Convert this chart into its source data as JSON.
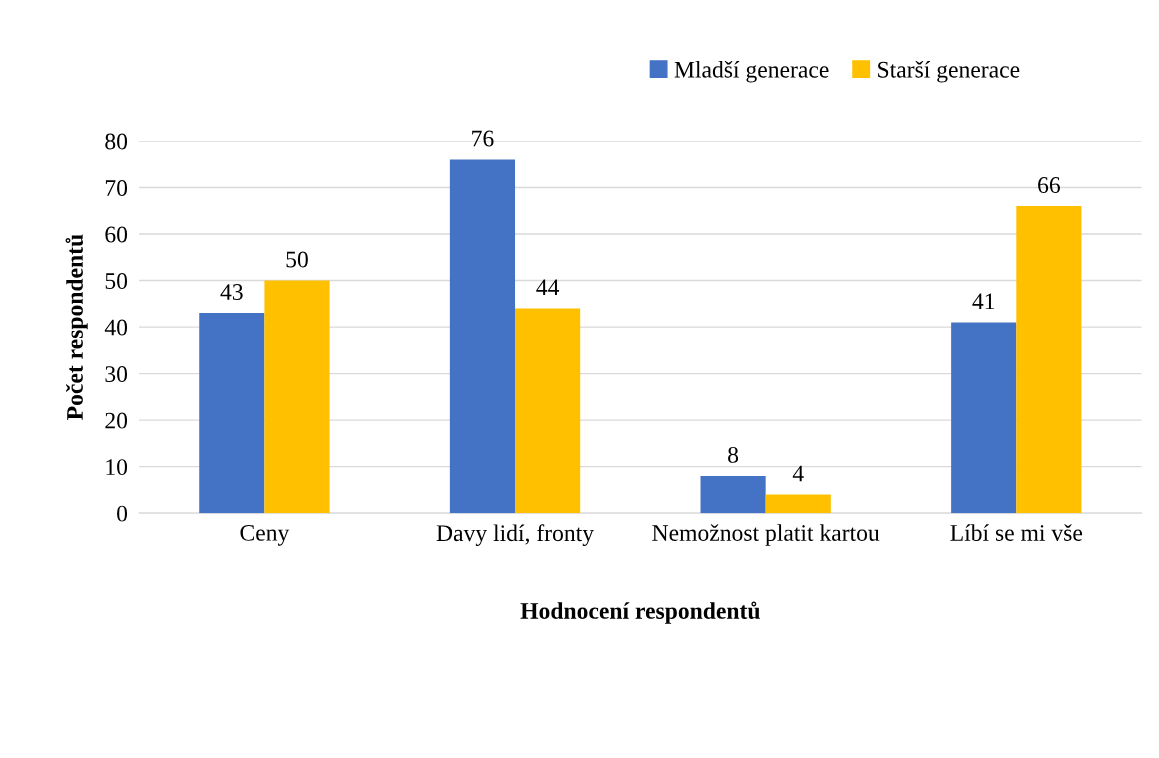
{
  "chart_data": {
    "type": "bar",
    "categories": [
      "Ceny",
      "Davy lidí, fronty",
      "Nemožnost platit kartou",
      "Líbí se mi vše"
    ],
    "series": [
      {
        "name": "Mladší generace",
        "color": "#4472c4",
        "values": [
          43,
          76,
          8,
          41
        ]
      },
      {
        "name": "Starší generace",
        "color": "#ffc000",
        "values": [
          50,
          44,
          4,
          66
        ]
      }
    ],
    "xlabel": "Hodnocení respondentů",
    "ylabel": "Počet respondentů",
    "ylim": [
      0,
      80
    ],
    "yticks": [
      0,
      10,
      20,
      30,
      40,
      50,
      60,
      70,
      80
    ],
    "grid": "y",
    "legend": "top right",
    "data_labels": true
  }
}
